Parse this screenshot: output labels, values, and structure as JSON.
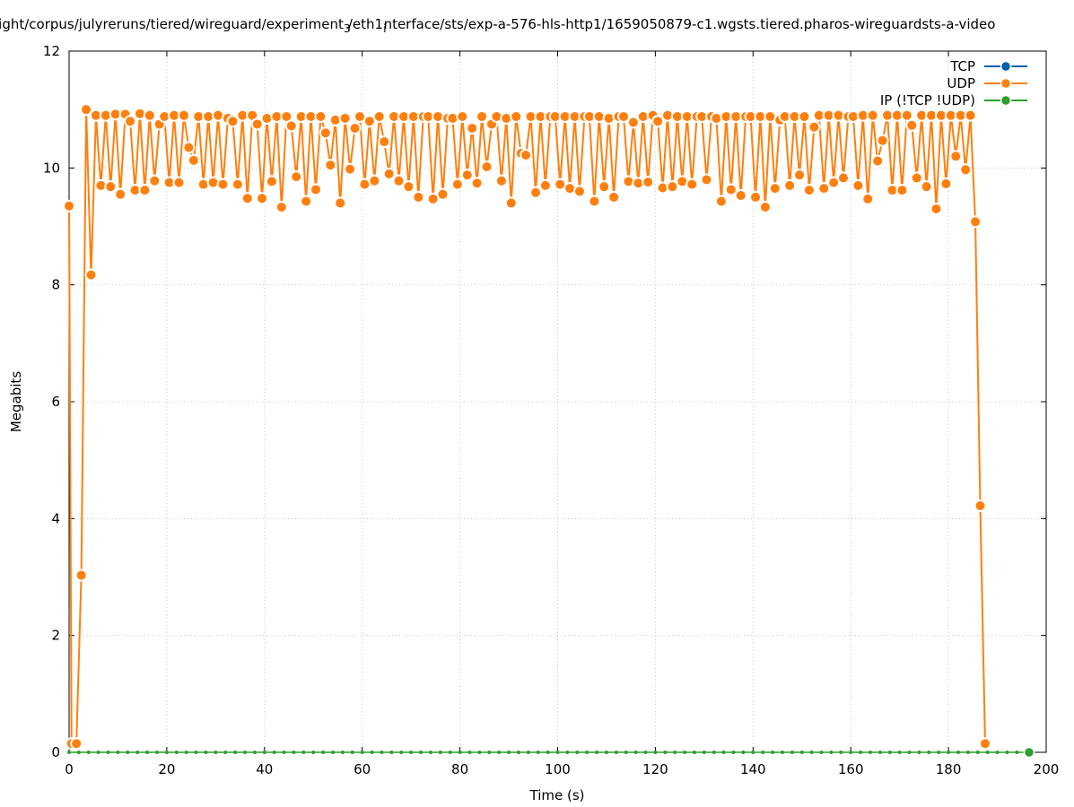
{
  "chart_data": {
    "type": "line",
    "title": "light/corpus/julyreruns/tiered/wireguard/experiment",
    "title_sub": "3",
    "title_mid": "/eth1",
    "title_sub2": "i",
    "title_end": "nterface/sts/exp-a-576-hls-http1/1659050879-c1.wgsts.tiered.pharos-wireguardsts-a-video",
    "xlabel": "Time (s)",
    "ylabel": "Megabits",
    "xlim": [
      0,
      200
    ],
    "ylim": [
      0,
      12
    ],
    "xticks": [
      "0",
      "20",
      "40",
      "60",
      "80",
      "100",
      "120",
      "140",
      "160",
      "180",
      "200"
    ],
    "yticks": [
      "0",
      "2",
      "4",
      "6",
      "8",
      "10",
      "12"
    ],
    "grid": true,
    "legend_position": "top-right",
    "series": [
      {
        "name": "TCP",
        "color": "#0060ad",
        "x": [],
        "y": []
      },
      {
        "name": "UDP",
        "color": "#ff7f0e",
        "x": [
          0,
          0.5,
          1.5,
          2.5,
          3.5,
          4.5,
          5.5,
          6.5,
          7.5,
          8.5,
          9.5,
          10.5,
          11.5,
          12.5,
          13.5,
          14.5,
          15.5,
          16.5,
          17.5,
          18.5,
          19.5,
          20.5,
          21.5,
          22.5,
          23.5,
          24.5,
          25.5,
          26.5,
          27.5,
          28.5,
          29.5,
          30.5,
          31.5,
          32.5,
          33.5,
          34.5,
          35.5,
          36.5,
          37.5,
          38.5,
          39.5,
          40.5,
          41.5,
          42.5,
          43.5,
          44.5,
          45.5,
          46.5,
          47.5,
          48.5,
          49.5,
          50.5,
          51.5,
          52.5,
          53.5,
          54.5,
          55.5,
          56.5,
          57.5,
          58.5,
          59.5,
          60.5,
          61.5,
          62.5,
          63.5,
          64.5,
          65.5,
          66.5,
          67.5,
          68.5,
          69.5,
          70.5,
          71.5,
          72.5,
          73.5,
          74.5,
          75.5,
          76.5,
          77.5,
          78.5,
          79.5,
          80.5,
          81.5,
          82.5,
          83.5,
          84.5,
          85.5,
          86.5,
          87.5,
          88.5,
          89.5,
          90.5,
          91.5,
          92.5,
          93.5,
          94.5,
          95.5,
          96.5,
          97.5,
          98.5,
          99.5,
          100.5,
          101.5,
          102.5,
          103.5,
          104.5,
          105.5,
          106.5,
          107.5,
          108.5,
          109.5,
          110.5,
          111.5,
          112.5,
          113.5,
          114.5,
          115.5,
          116.5,
          117.5,
          118.5,
          119.5,
          120.5,
          121.5,
          122.5,
          123.5,
          124.5,
          125.5,
          126.5,
          127.5,
          128.5,
          129.5,
          130.5,
          131.5,
          132.5,
          133.5,
          134.5,
          135.5,
          136.5,
          137.5,
          138.5,
          139.5,
          140.5,
          141.5,
          142.5,
          143.5,
          144.5,
          145.5,
          146.5,
          147.5,
          148.5,
          149.5,
          150.5,
          151.5,
          152.5,
          153.5,
          154.5,
          155.5,
          156.5,
          157.5,
          158.5,
          159.5,
          160.5,
          161.5,
          162.5,
          163.5,
          164.5,
          165.5,
          166.5,
          167.5,
          168.5,
          169.5,
          170.5,
          171.5,
          172.5,
          173.5,
          174.5,
          175.5,
          176.5,
          177.5,
          178.5,
          179.5,
          180.5,
          181.5,
          182.5,
          183.5,
          184.5,
          185.5,
          186.5,
          187.5
        ],
        "y": [
          9.35,
          0.15,
          0.15,
          3.03,
          11.0,
          8.17,
          10.9,
          9.7,
          10.9,
          9.68,
          10.92,
          9.55,
          10.92,
          10.8,
          9.62,
          10.93,
          9.62,
          10.9,
          9.78,
          10.75,
          10.88,
          9.75,
          10.9,
          9.75,
          10.9,
          10.35,
          10.13,
          10.88,
          9.72,
          10.88,
          9.75,
          10.9,
          9.72,
          10.85,
          10.8,
          9.72,
          10.9,
          9.48,
          10.9,
          10.75,
          9.48,
          10.85,
          9.77,
          10.88,
          9.33,
          10.88,
          10.72,
          9.85,
          10.88,
          9.43,
          10.88,
          9.63,
          10.88,
          10.6,
          10.05,
          10.82,
          9.4,
          10.85,
          9.98,
          10.68,
          10.88,
          9.72,
          10.8,
          9.78,
          10.88,
          10.45,
          9.9,
          10.88,
          9.78,
          10.88,
          9.68,
          10.88,
          9.5,
          10.88,
          10.88,
          9.47,
          10.88,
          9.55,
          10.85,
          10.85,
          9.72,
          10.88,
          9.88,
          10.68,
          9.74,
          10.88,
          10.02,
          10.75,
          10.88,
          9.78,
          10.85,
          9.4,
          10.88,
          10.25,
          10.22,
          10.88,
          9.58,
          10.88,
          9.7,
          10.88,
          10.88,
          9.72,
          10.88,
          9.65,
          10.88,
          9.6,
          10.88,
          10.88,
          9.43,
          10.88,
          9.68,
          10.85,
          9.5,
          10.88,
          10.88,
          9.77,
          10.78,
          9.74,
          10.88,
          9.76,
          10.9,
          10.8,
          9.66,
          10.9,
          9.68,
          10.88,
          9.77,
          10.88,
          9.72,
          10.88,
          10.88,
          9.8,
          10.88,
          10.85,
          9.43,
          10.88,
          9.63,
          10.88,
          9.53,
          10.88,
          10.88,
          9.5,
          10.88,
          9.33,
          10.88,
          9.65,
          10.82,
          10.88,
          9.7,
          10.88,
          9.88,
          10.88,
          9.62,
          10.7,
          10.9,
          9.65,
          10.9,
          9.75,
          10.9,
          9.83,
          10.88,
          10.88,
          9.7,
          10.9,
          9.47,
          10.9,
          10.12,
          10.47,
          10.9,
          9.62,
          10.9,
          9.62,
          10.9,
          10.73,
          9.83,
          10.9,
          9.68,
          10.9,
          9.3,
          10.9,
          9.73,
          10.9,
          10.2,
          10.9,
          9.97,
          10.9,
          9.08,
          4.22,
          0.15
        ]
      },
      {
        "name": "IP (!TCP  !UDP)",
        "color": "#2ca02c",
        "x": [
          0,
          196.5
        ],
        "y": [
          0,
          0
        ]
      }
    ]
  }
}
